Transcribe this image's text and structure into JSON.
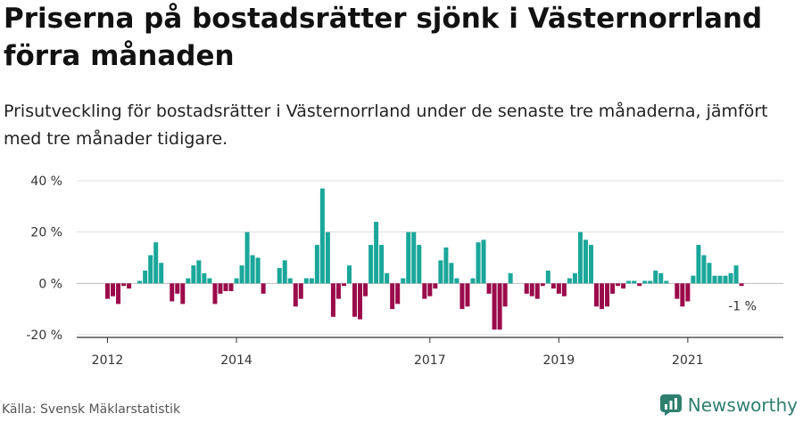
{
  "title": "Priserna på bostadsrätter sjönk i Västernorrland förra månaden",
  "subtitle": "Prisutveckling för bostadsrätter i Västernorrland under de senaste tre månaderna, jämfört med tre månader tidigare.",
  "source": "Källa: Svensk Mäklarstatistik",
  "brand": "Newsworthy",
  "colors": {
    "positive": "#1aa79a",
    "negative": "#9b0a4a",
    "grid": "#dddddd",
    "axis": "#333333"
  },
  "chart_data": {
    "type": "bar",
    "title": "Priserna på bostadsrätter sjönk i Västernorrland förra månaden",
    "xlabel": "",
    "ylabel": "",
    "ylim": [
      -20,
      40
    ],
    "yticks": [
      -20,
      0,
      20,
      40
    ],
    "ytick_labels": [
      "-20 %",
      "0 %",
      "20 %",
      "40 %"
    ],
    "grid": true,
    "x_start": "2012-01",
    "xtick_labels": [
      {
        "label": "2012",
        "index": 0
      },
      {
        "label": "2014",
        "index": 24
      },
      {
        "label": "2017",
        "index": 60
      },
      {
        "label": "2019",
        "index": 84
      },
      {
        "label": "2021",
        "index": 108
      }
    ],
    "values": [
      -6,
      -5,
      -8,
      -1,
      -2,
      0,
      1,
      5,
      11,
      16,
      8,
      0,
      -7,
      -4,
      -8,
      2,
      7,
      9,
      4,
      2,
      -8,
      -4,
      -3,
      -3,
      2,
      7,
      20,
      11,
      10,
      -4,
      0,
      0,
      6,
      9,
      2,
      -9,
      -6,
      2,
      2,
      15,
      37,
      20,
      -13,
      -6,
      -1,
      7,
      -13,
      -14,
      -5,
      15,
      24,
      15,
      4,
      -10,
      -8,
      2,
      20,
      20,
      15,
      -6,
      -5,
      -2,
      9,
      14,
      8,
      2,
      -10,
      -9,
      2,
      16,
      17,
      -4,
      -18,
      -18,
      -9,
      4,
      0,
      0,
      -4,
      -5,
      -6,
      -1,
      5,
      -2,
      -4,
      -5,
      2,
      4,
      20,
      17,
      15,
      -9,
      -10,
      -9,
      -4,
      -1,
      -2,
      1,
      1,
      -1,
      1,
      1,
      5,
      4,
      1,
      0,
      -6,
      -9,
      -7,
      3,
      15,
      11,
      8,
      3,
      3,
      3,
      4,
      7,
      -1
    ],
    "last_label": "-1 %"
  }
}
